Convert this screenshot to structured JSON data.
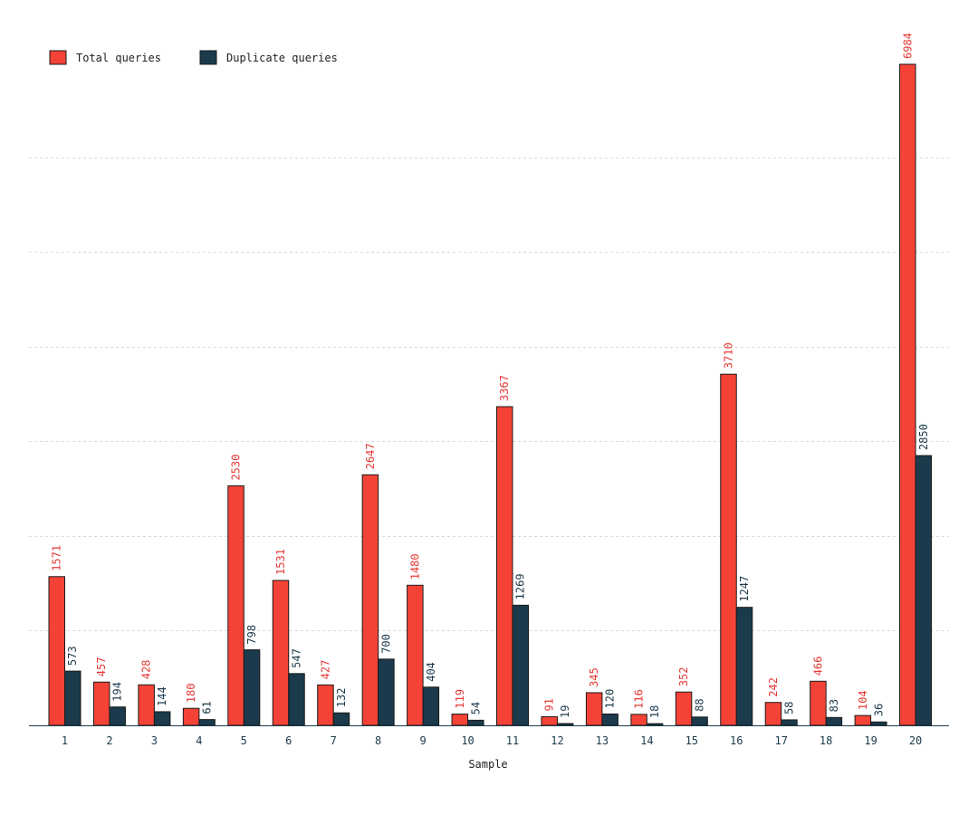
{
  "colors": {
    "total": "#f44336",
    "duplicate": "#1b3a4b",
    "bar_outline": "#1a1a1a",
    "total_label": "#e53935",
    "duplicate_label": "#1b3a4b"
  },
  "legend": {
    "position": "top-left",
    "items": [
      {
        "label": "Total queries",
        "color_key": "total"
      },
      {
        "label": "Duplicate queries",
        "color_key": "duplicate"
      }
    ]
  },
  "chart_data": {
    "type": "bar",
    "title": "",
    "xlabel": "Sample",
    "ylabel": "",
    "categories": [
      "1",
      "2",
      "3",
      "4",
      "5",
      "6",
      "7",
      "8",
      "9",
      "10",
      "11",
      "12",
      "13",
      "14",
      "15",
      "16",
      "17",
      "18",
      "19",
      "20"
    ],
    "series": [
      {
        "name": "Total queries",
        "values": [
          1571,
          457,
          428,
          180,
          2530,
          1531,
          427,
          2647,
          1480,
          119,
          3367,
          91,
          345,
          116,
          352,
          3710,
          242,
          466,
          104,
          6984
        ]
      },
      {
        "name": "Duplicate queries",
        "values": [
          573,
          194,
          144,
          61,
          798,
          547,
          132,
          700,
          404,
          54,
          1269,
          19,
          120,
          18,
          88,
          1247,
          58,
          83,
          36,
          2850
        ]
      }
    ],
    "ylim": [
      0,
      7000
    ],
    "yticks": [
      0,
      1000,
      2000,
      3000,
      4000,
      5000,
      6000
    ],
    "grid": true,
    "show_y_tick_labels": false
  }
}
